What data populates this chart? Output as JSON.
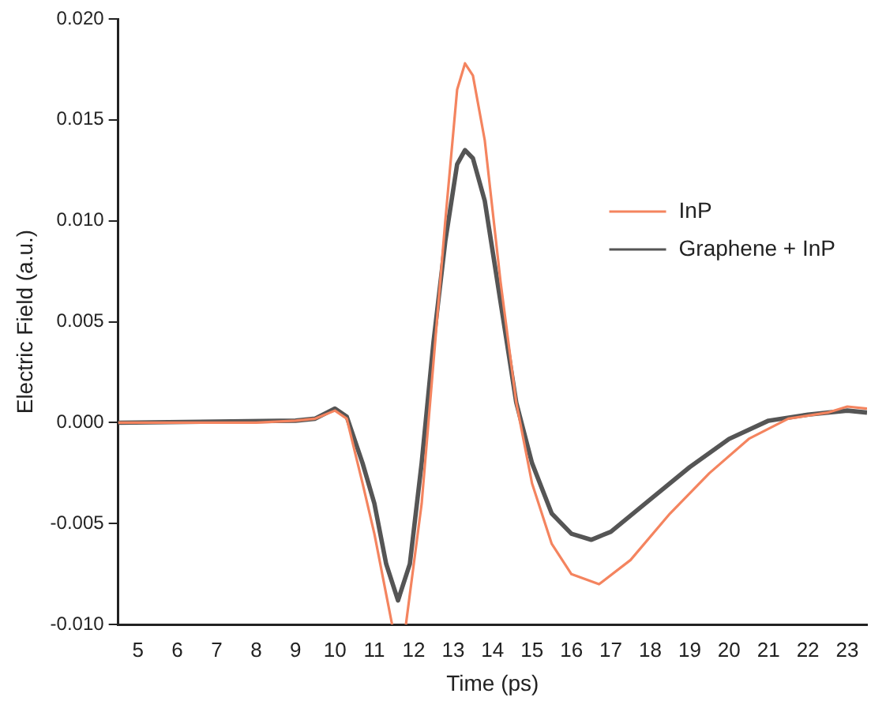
{
  "chart_data": {
    "type": "line",
    "xlabel": "Time (ps)",
    "ylabel": "Electric Field (a.u.)",
    "xlim": [
      4.5,
      23.5
    ],
    "xticks": [
      5,
      6,
      7,
      8,
      9,
      10,
      11,
      12,
      13,
      14,
      15,
      16,
      17,
      18,
      19,
      20,
      21,
      22,
      23
    ],
    "ylim": [
      -0.01,
      0.02
    ],
    "yticks": [
      {
        "value": -0.01,
        "label": "-0.010"
      },
      {
        "value": -0.005,
        "label": "-0.005"
      },
      {
        "value": 0,
        "label": "0.000"
      },
      {
        "value": 0.005,
        "label": "0.005"
      },
      {
        "value": 0.01,
        "label": "0.010"
      },
      {
        "value": 0.015,
        "label": "0.015"
      },
      {
        "value": 0.02,
        "label": "0.020"
      }
    ],
    "grid": false,
    "legend": "top right",
    "marker": "none",
    "line_style": "solid",
    "series": [
      {
        "name": "InP",
        "color": "#f4845f",
        "x": [
          4.5,
          6,
          8,
          9,
          9.5,
          10,
          10.3,
          10.7,
          11,
          11.3,
          11.45,
          11.6,
          11.8,
          12.2,
          12.5,
          12.8,
          13.1,
          13.3,
          13.5,
          13.8,
          14.2,
          14.6,
          15,
          15.5,
          16,
          16.7,
          17.5,
          18.5,
          19.5,
          20.5,
          21.5,
          22.5,
          23,
          23.5
        ],
        "values": [
          0,
          0,
          0,
          0.0001,
          0.0002,
          0.0006,
          0.0002,
          -0.003,
          -0.0055,
          -0.0085,
          -0.01,
          null,
          -0.01,
          -0.004,
          0.003,
          0.01,
          0.0165,
          0.0178,
          0.0172,
          0.014,
          0.007,
          0.001,
          -0.003,
          -0.006,
          -0.0075,
          -0.008,
          -0.0068,
          -0.0045,
          -0.0025,
          -0.0008,
          0.0002,
          0.0005,
          0.0008,
          0.0007
        ]
      },
      {
        "name": "Graphene + InP",
        "color": "#555555",
        "x": [
          4.5,
          9,
          9.5,
          10,
          10.3,
          10.7,
          11,
          11.3,
          11.6,
          11.9,
          12.2,
          12.5,
          12.8,
          13.1,
          13.3,
          13.5,
          13.8,
          14.2,
          14.6,
          15,
          15.5,
          16,
          16.5,
          17,
          18,
          19,
          20,
          21,
          22,
          23,
          23.5
        ],
        "values": [
          0,
          0.0001,
          0.0002,
          0.0007,
          0.0003,
          -0.002,
          -0.004,
          -0.007,
          -0.0088,
          -0.007,
          -0.002,
          0.004,
          0.009,
          0.0128,
          0.0135,
          0.0131,
          0.011,
          0.006,
          0.001,
          -0.002,
          -0.0045,
          -0.0055,
          -0.0058,
          -0.0054,
          -0.0038,
          -0.0022,
          -0.0008,
          0.0001,
          0.0004,
          0.0006,
          0.0005
        ]
      }
    ]
  }
}
